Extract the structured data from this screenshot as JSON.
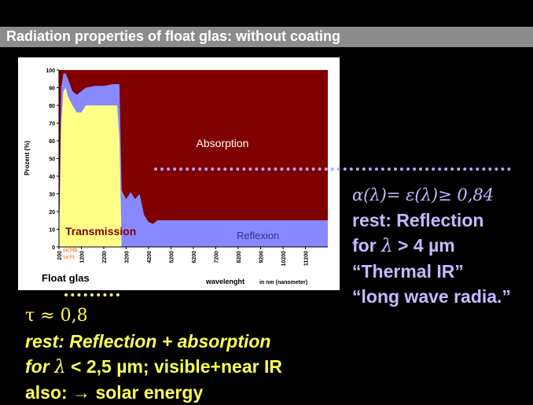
{
  "slide": {
    "title": "Radiation properties of float glas: without coating"
  },
  "chart_data": {
    "type": "area",
    "ylabel": "Prozent (%)",
    "xlabel": "wavelenght",
    "xlabel_unit": "in nm (nanometer)",
    "caption": "Float glas",
    "y_ticks": [
      0,
      10,
      20,
      30,
      40,
      50,
      60,
      70,
      80,
      90,
      100
    ],
    "x_ticks": [
      "200",
      "1200",
      "2200",
      "3200",
      "4200",
      "5200",
      "6200",
      "7200",
      "8200",
      "9200",
      "10200",
      "11200"
    ],
    "xlim": [
      200,
      12200
    ],
    "ylim": [
      0,
      100
    ],
    "region_labels": {
      "transmission": "Transmission",
      "absorption": "Absorption",
      "reflexion": "Reflexion",
      "visible": "sichtb.",
      "visible2": "sicht"
    },
    "colors": {
      "transmission": "#ffff88",
      "absorption": "#800000",
      "reflexion": "#8888ff",
      "visible_label": "#ff6600"
    },
    "series": [
      {
        "name": "Transmission",
        "x": [
          200,
          300,
          400,
          500,
          600,
          800,
          1000,
          1200,
          1400,
          1800,
          2200,
          2600,
          2800,
          2900,
          3000,
          3200
        ],
        "values": [
          0,
          70,
          88,
          90,
          85,
          80,
          76,
          76,
          80,
          80,
          80,
          80,
          80,
          60,
          0,
          0
        ]
      },
      {
        "name": "Transmission+Reflexion",
        "x": [
          200,
          300,
          400,
          500,
          600,
          800,
          1000,
          1200,
          1400,
          1800,
          2200,
          2600,
          2800,
          2900,
          3000,
          3200,
          3400,
          3600,
          3800,
          4000,
          4200,
          4400,
          4600,
          5200,
          6200,
          8200,
          10200,
          12200
        ],
        "values": [
          0,
          90,
          98,
          98,
          95,
          88,
          86,
          88,
          90,
          91,
          91,
          92,
          92,
          92,
          32,
          27,
          31,
          27,
          30,
          18,
          14,
          13,
          15,
          15,
          15,
          15,
          15,
          15
        ]
      },
      {
        "name": "Reflexion (upper edge)",
        "x": [
          3000,
          3200,
          3400,
          3600,
          3800,
          4000,
          4200,
          4400,
          4600,
          12200
        ],
        "values": [
          20,
          24,
          28,
          22,
          26,
          14,
          14,
          13,
          15,
          15
        ]
      }
    ]
  },
  "right_panel": {
    "formula": "α(λ)= ε(λ)≥ 0,84",
    "line1_prefix": "rest: Reflection",
    "line2_for": "for ",
    "line2_lambda": "λ",
    "line2_rest": " > 4 µm",
    "line3": "“Thermal IR”",
    "line4": "“long wave radia.”"
  },
  "left_panel": {
    "tau_symbol": "τ",
    "tau_value": " ≈ 0,8",
    "line2": "rest: Reflection + absorption",
    "line3_for": "for ",
    "line3_lambda": "λ",
    "line3_rest": " < 2,5 µm; visible+near IR",
    "line4": "also: → solar energy"
  }
}
